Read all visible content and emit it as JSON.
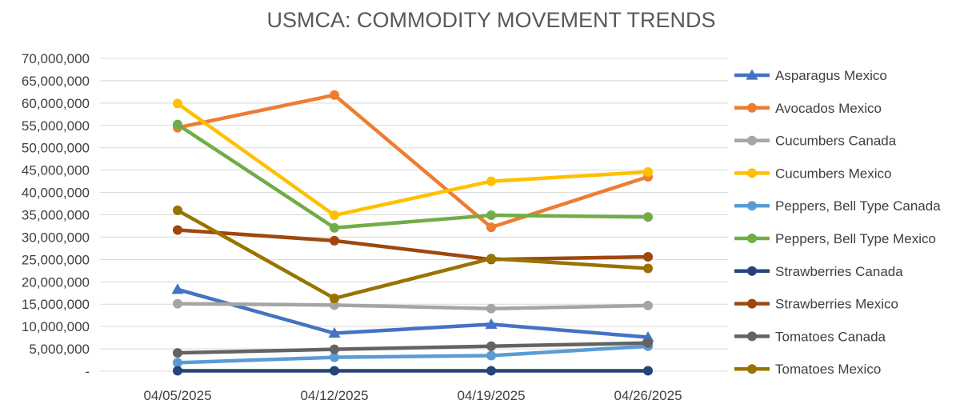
{
  "chart_data": {
    "type": "line",
    "title": "USMCA: COMMODITY MOVEMENT TRENDS",
    "xlabel": "",
    "ylabel": "",
    "categories": [
      "04/05/2025",
      "04/12/2025",
      "04/19/2025",
      "04/26/2025"
    ],
    "ylim": [
      0,
      70000000
    ],
    "ytick_values": [
      0,
      5000000,
      10000000,
      15000000,
      20000000,
      25000000,
      30000000,
      35000000,
      40000000,
      45000000,
      50000000,
      55000000,
      60000000,
      65000000,
      70000000
    ],
    "ytick_labels": [
      "-",
      "5,000,000",
      "10,000,000",
      "15,000,000",
      "20,000,000",
      "25,000,000",
      "30,000,000",
      "35,000,000",
      "40,000,000",
      "45,000,000",
      "50,000,000",
      "55,000,000",
      "60,000,000",
      "65,000,000",
      "70,000,000"
    ],
    "grid": true,
    "legend_position": "right",
    "series": [
      {
        "name": "Asparagus Mexico",
        "color": "#4472C4",
        "marker": "triangle",
        "values": [
          18300000,
          8500000,
          10500000,
          7600000
        ]
      },
      {
        "name": "Avocados Mexico",
        "color": "#ED7D31",
        "marker": "circle",
        "values": [
          54500000,
          61800000,
          32200000,
          43500000
        ]
      },
      {
        "name": "Cucumbers Canada",
        "color": "#A5A5A5",
        "marker": "circle",
        "values": [
          15100000,
          14800000,
          14000000,
          14700000
        ]
      },
      {
        "name": "Cucumbers Mexico",
        "color": "#FFC000",
        "marker": "circle",
        "values": [
          59900000,
          34900000,
          42500000,
          44600000
        ]
      },
      {
        "name": "Peppers, Bell Type Canada",
        "color": "#5B9BD5",
        "marker": "circle",
        "values": [
          1900000,
          3100000,
          3500000,
          5600000
        ]
      },
      {
        "name": "Peppers, Bell Type Mexico",
        "color": "#70AD47",
        "marker": "circle",
        "values": [
          55200000,
          32100000,
          34900000,
          34500000
        ]
      },
      {
        "name": "Strawberries Canada",
        "color": "#264478",
        "marker": "circle",
        "values": [
          100000,
          100000,
          100000,
          100000
        ]
      },
      {
        "name": "Strawberries Mexico",
        "color": "#9E480E",
        "marker": "circle",
        "values": [
          31600000,
          29200000,
          25000000,
          25600000
        ]
      },
      {
        "name": "Tomatoes Canada",
        "color": "#636363",
        "marker": "circle",
        "values": [
          4100000,
          4900000,
          5600000,
          6300000
        ]
      },
      {
        "name": "Tomatoes Mexico",
        "color": "#997300",
        "marker": "circle",
        "values": [
          36000000,
          16300000,
          25200000,
          23000000
        ]
      }
    ]
  }
}
